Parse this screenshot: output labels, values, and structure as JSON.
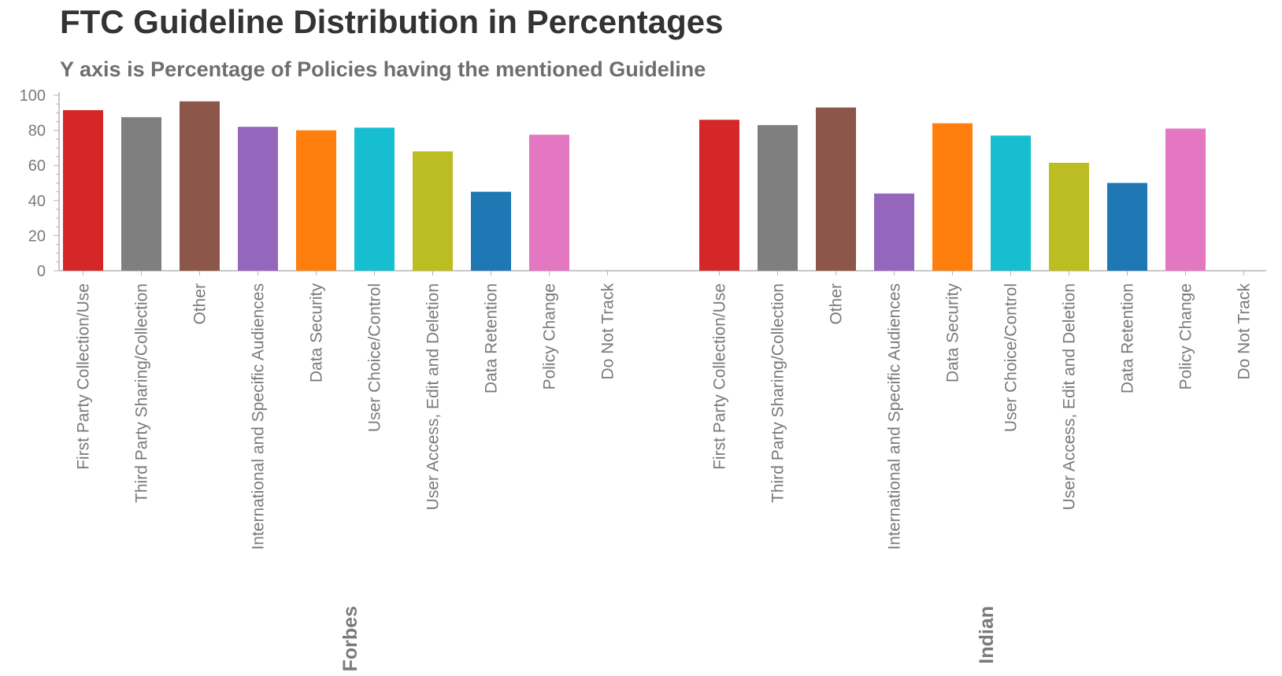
{
  "header": {
    "title": "FTC Guideline Distribution in Percentages",
    "subtitle": "Y axis is Percentage of Policies having the mentioned Guideline"
  },
  "chart_data": {
    "type": "bar",
    "ylim": [
      0,
      100
    ],
    "yticks": [
      "0",
      "20",
      "40",
      "60",
      "80",
      "100"
    ],
    "grid": false,
    "legend": "none",
    "categories": [
      "First Party Collection/Use",
      "Third Party Sharing/Collection",
      "Other",
      "International and Specific Audiences",
      "Data Security",
      "User Choice/Control",
      "User Access, Edit and Deletion",
      "Data Retention",
      "Policy Change",
      "Do Not Track"
    ],
    "colors": [
      "#d62728",
      "#7f7f7f",
      "#8c564b",
      "#9467bd",
      "#ff7f0e",
      "#17becf",
      "#bcbd22",
      "#1f77b4",
      "#e377c2",
      "#cccccc"
    ],
    "groups": [
      {
        "label": "Forbes",
        "values": [
          91.5,
          87.5,
          96.5,
          82,
          80,
          81.5,
          68,
          45,
          77.5,
          0
        ]
      },
      {
        "label": "Indian",
        "values": [
          86,
          83,
          93,
          44,
          84,
          77,
          61.5,
          50,
          81,
          0
        ]
      }
    ]
  }
}
